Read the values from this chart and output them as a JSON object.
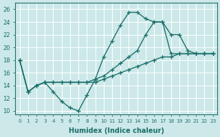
{
  "xlabel": "Humidex (Indice chaleur)",
  "bg_color": "#cce8e8",
  "line_color": "#1a6e6a",
  "grid_color": "#ffffff",
  "xlim": [
    -0.5,
    23.5
  ],
  "ylim": [
    9.5,
    27
  ],
  "xticks": [
    0,
    1,
    2,
    3,
    4,
    5,
    6,
    7,
    8,
    9,
    10,
    11,
    12,
    13,
    14,
    15,
    16,
    17,
    18,
    19,
    20,
    21,
    22,
    23
  ],
  "yticks": [
    10,
    12,
    14,
    16,
    18,
    20,
    22,
    24,
    26
  ],
  "line1_x": [
    0,
    1,
    2,
    3,
    4,
    5,
    6,
    7,
    8,
    9,
    10,
    11,
    12,
    13,
    14,
    15,
    16,
    17,
    18,
    19,
    20,
    21,
    22,
    23
  ],
  "line1_y": [
    18,
    13,
    14,
    14.5,
    13,
    11.5,
    10.5,
    10,
    12.5,
    15,
    18.5,
    21,
    23.5,
    25.5,
    25.5,
    24.5,
    24,
    24,
    19,
    19,
    19,
    19,
    19,
    19
  ],
  "line2_x": [
    0,
    1,
    2,
    3,
    4,
    5,
    6,
    7,
    8,
    9,
    10,
    11,
    12,
    13,
    14,
    15,
    16,
    17,
    18,
    19,
    20,
    21,
    22,
    23
  ],
  "line2_y": [
    18,
    13,
    14,
    14.5,
    14.5,
    14.5,
    14.5,
    14.5,
    14.5,
    15,
    15.5,
    16.5,
    17.5,
    18.5,
    19.5,
    22,
    24,
    24,
    22,
    22,
    19.5,
    19,
    19,
    19
  ],
  "line3_x": [
    0,
    1,
    2,
    3,
    4,
    5,
    6,
    7,
    8,
    9,
    10,
    11,
    12,
    13,
    14,
    15,
    16,
    17,
    18,
    19,
    20,
    21,
    22,
    23
  ],
  "line3_y": [
    18,
    13,
    14,
    14.5,
    14.5,
    14.5,
    14.5,
    14.5,
    14.5,
    14.5,
    15,
    15.5,
    16,
    16.5,
    17,
    17.5,
    18,
    18.5,
    18.5,
    19,
    19,
    19,
    19,
    19
  ],
  "linewidth": 1.0,
  "marker_size": 4
}
